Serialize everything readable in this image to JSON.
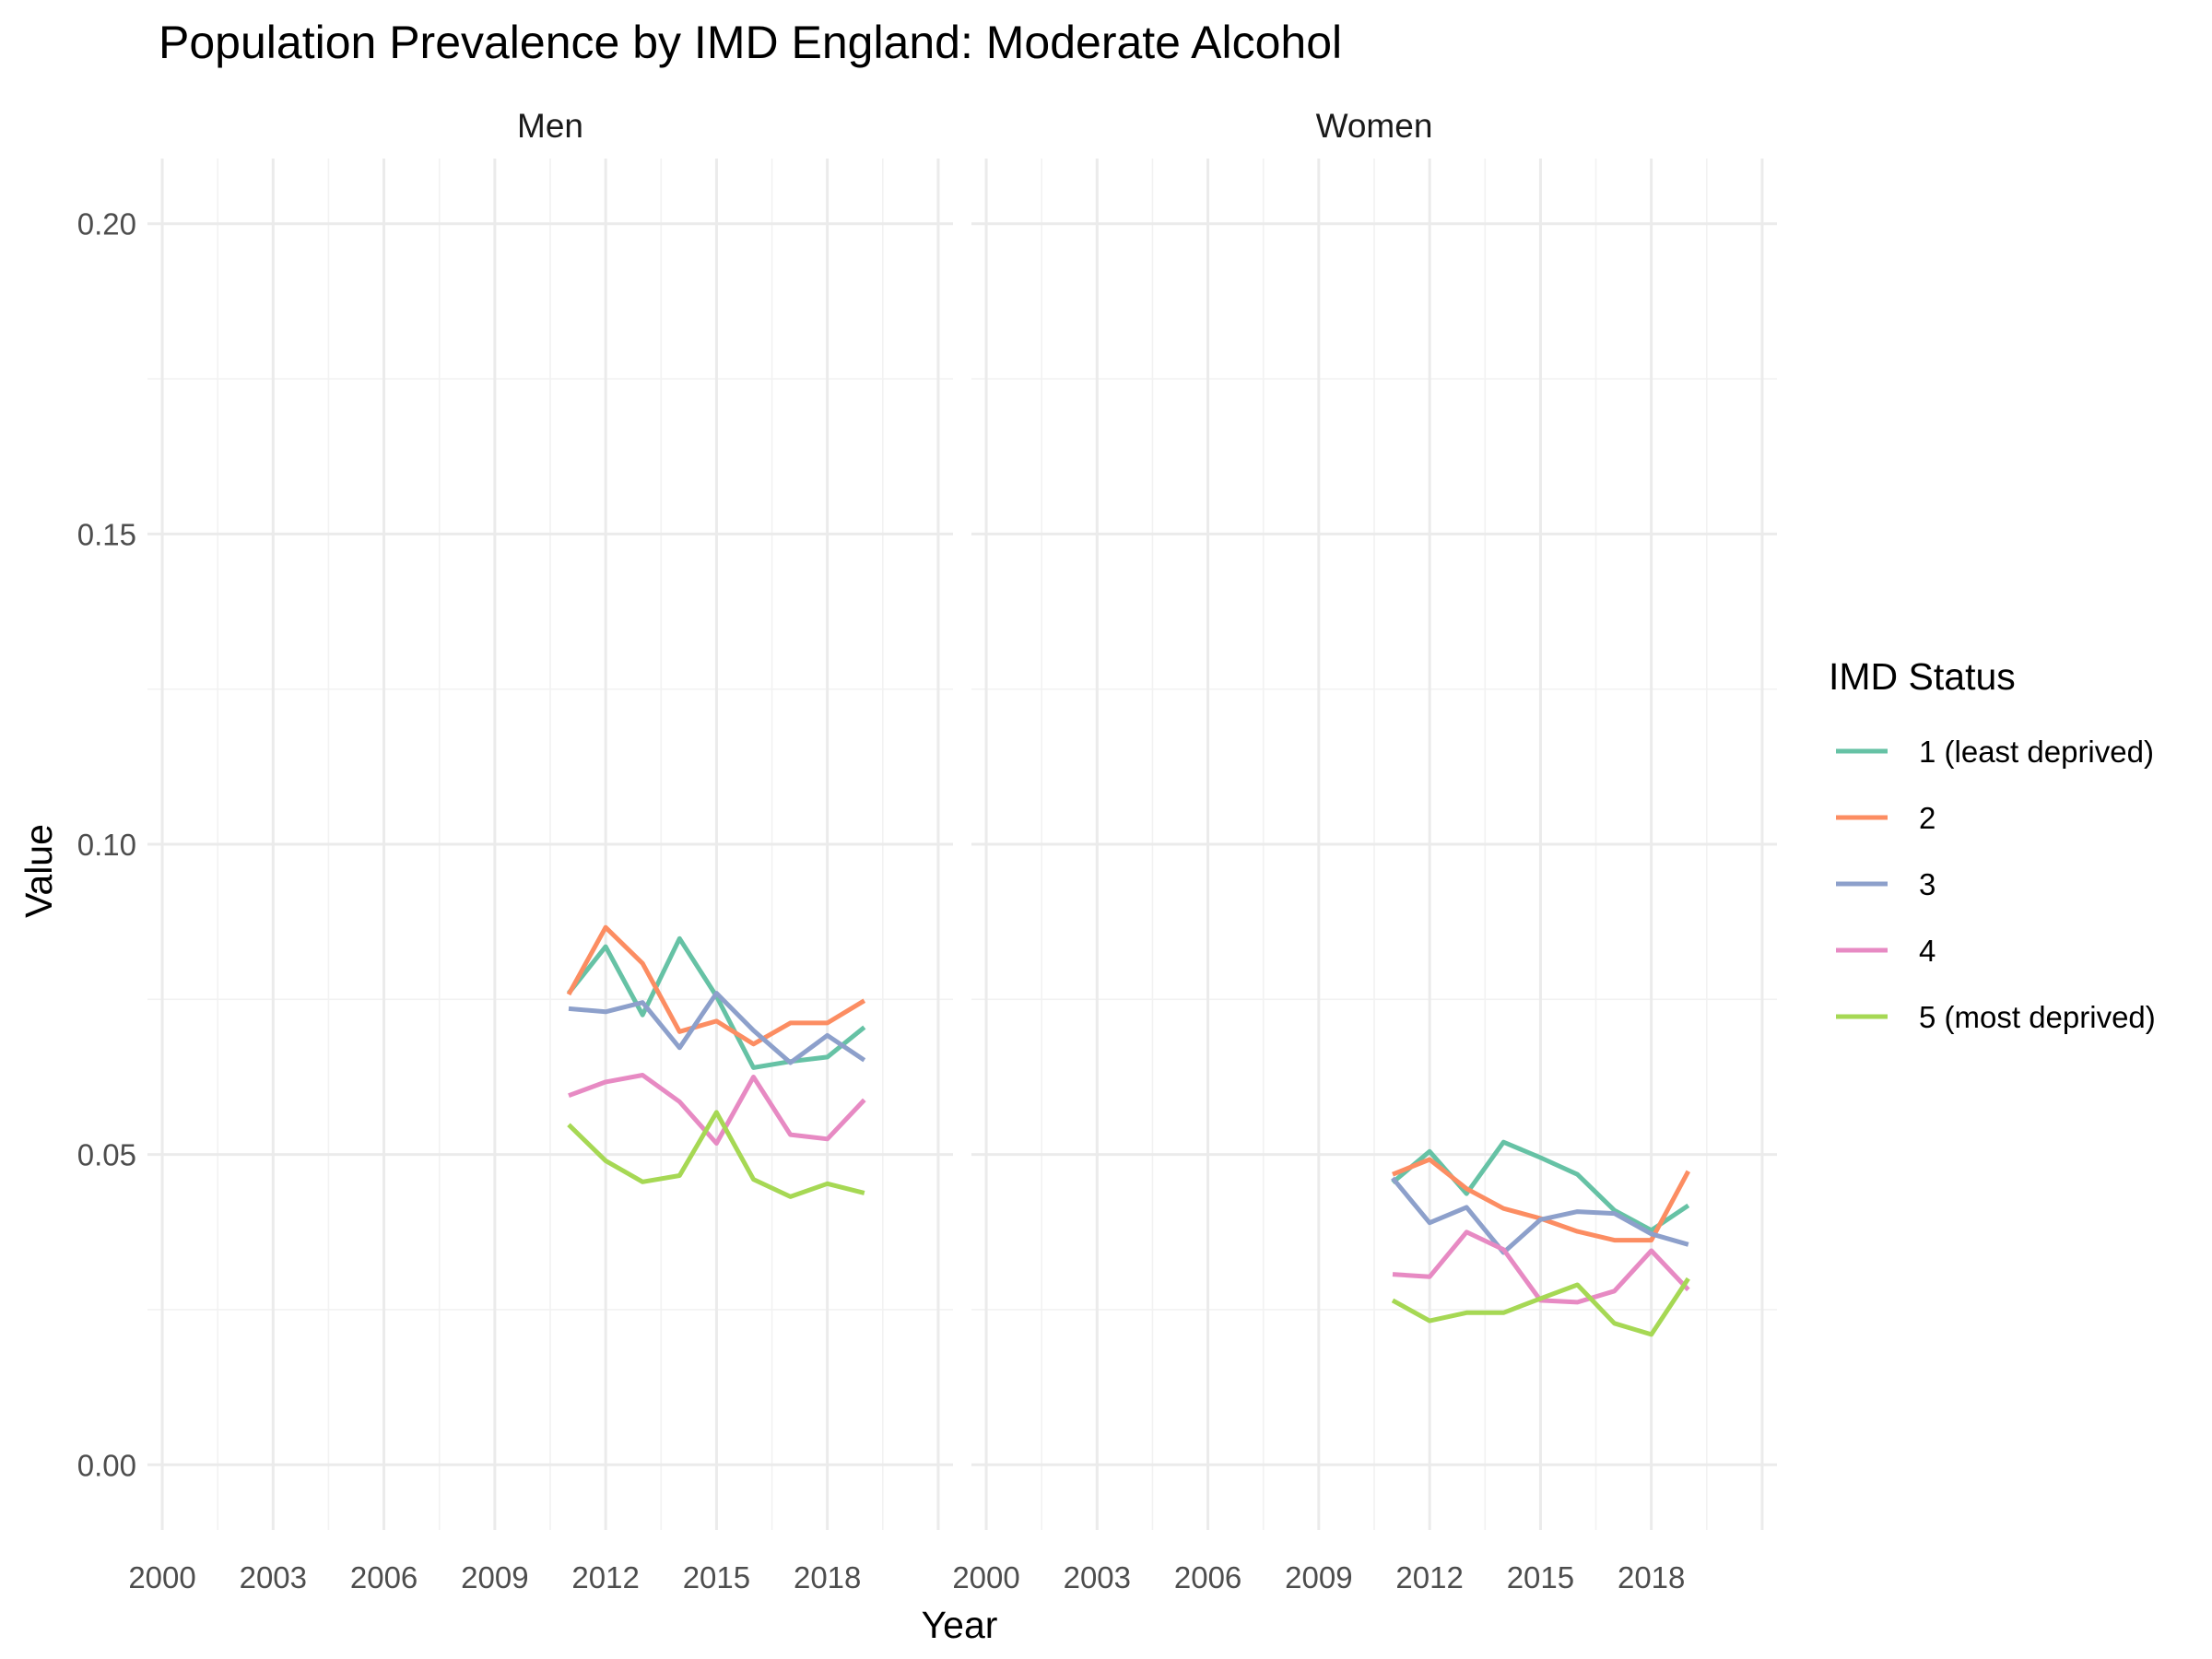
{
  "chart_data": {
    "type": "line",
    "title": "Population Prevalence by IMD England: Moderate Alcohol",
    "xlabel": "Year",
    "ylabel": "Value",
    "xlim": [
      1999.6,
      2021.4
    ],
    "ylim": [
      -0.0105,
      0.2105
    ],
    "x_ticks": [
      2000,
      2003,
      2006,
      2009,
      2012,
      2015,
      2018
    ],
    "x_tick_labels": [
      "2000",
      "2003",
      "2006",
      "2009",
      "2012",
      "2015",
      "2018"
    ],
    "y_ticks": [
      0.0,
      0.05,
      0.1,
      0.15,
      0.2
    ],
    "y_tick_labels": [
      "0.00",
      "0.05",
      "0.10",
      "0.15",
      "0.20"
    ],
    "grid": true,
    "legend": {
      "title": "IMD Status",
      "position": "right",
      "entries": [
        "1 (least deprived)",
        "2",
        "3",
        "4",
        "5 (most deprived)"
      ],
      "colors": [
        "#66c2a5",
        "#fc8d62",
        "#8da0cb",
        "#e78ac3",
        "#a6d854"
      ]
    },
    "panels": [
      {
        "name": "Men",
        "x": [
          2011,
          2012,
          2013,
          2014,
          2015,
          2016,
          2017,
          2018,
          2019
        ],
        "series": [
          {
            "name": "1 (least deprived)",
            "color": "#66c2a5",
            "values": [
              0.076,
              0.0835,
              0.0725,
              0.0848,
              0.0755,
              0.064,
              0.065,
              0.0657,
              0.0705
            ]
          },
          {
            "name": "2",
            "color": "#fc8d62",
            "values": [
              0.0758,
              0.0866,
              0.0808,
              0.0698,
              0.0715,
              0.0678,
              0.0712,
              0.0712,
              0.0748
            ]
          },
          {
            "name": "3",
            "color": "#8da0cb",
            "values": [
              0.0735,
              0.073,
              0.0745,
              0.0672,
              0.076,
              0.07,
              0.0648,
              0.0692,
              0.0652
            ]
          },
          {
            "name": "4",
            "color": "#e78ac3",
            "values": [
              0.0595,
              0.0617,
              0.0628,
              0.0585,
              0.0518,
              0.0625,
              0.0532,
              0.0525,
              0.0588
            ]
          },
          {
            "name": "5 (most deprived)",
            "color": "#a6d854",
            "values": [
              0.0548,
              0.049,
              0.0456,
              0.0466,
              0.0568,
              0.046,
              0.0432,
              0.0453,
              0.0438
            ]
          }
        ]
      },
      {
        "name": "Women",
        "x": [
          2011,
          2012,
          2013,
          2014,
          2015,
          2016,
          2017,
          2018,
          2019
        ],
        "series": [
          {
            "name": "1 (least deprived)",
            "color": "#66c2a5",
            "values": [
              0.0455,
              0.0505,
              0.0437,
              0.052,
              0.0495,
              0.0468,
              0.041,
              0.0378,
              0.0418
            ]
          },
          {
            "name": "2",
            "color": "#fc8d62",
            "values": [
              0.0468,
              0.0492,
              0.0445,
              0.0413,
              0.0397,
              0.0376,
              0.0362,
              0.0362,
              0.0473
            ]
          },
          {
            "name": "3",
            "color": "#8da0cb",
            "values": [
              0.0462,
              0.039,
              0.0415,
              0.0342,
              0.0395,
              0.0408,
              0.0405,
              0.0372,
              0.0355
            ]
          },
          {
            "name": "4",
            "color": "#e78ac3",
            "values": [
              0.0307,
              0.0303,
              0.0375,
              0.0347,
              0.0265,
              0.0262,
              0.028,
              0.0345,
              0.0282
            ]
          },
          {
            "name": "5 (most deprived)",
            "color": "#a6d854",
            "values": [
              0.0265,
              0.0232,
              0.0245,
              0.0245,
              0.0268,
              0.029,
              0.0228,
              0.021,
              0.03
            ]
          }
        ]
      }
    ]
  }
}
